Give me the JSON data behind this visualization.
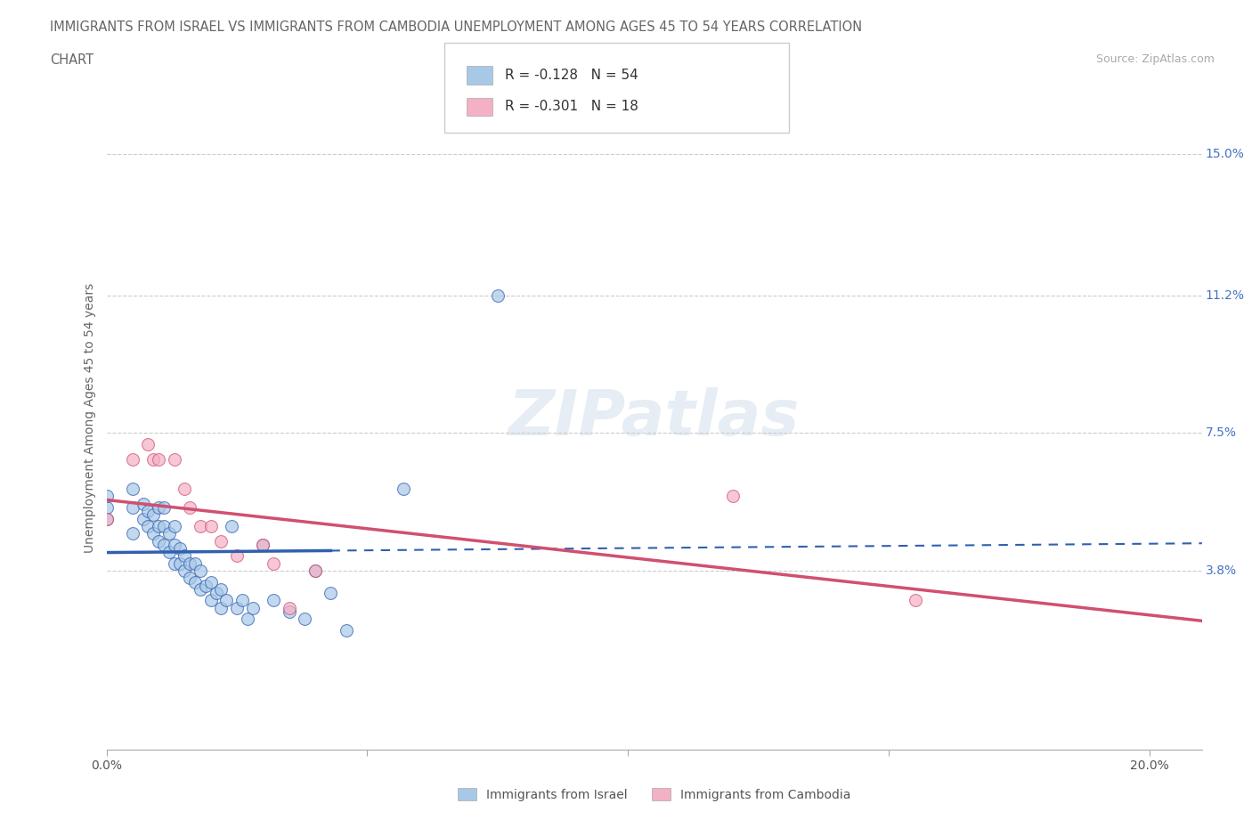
{
  "title_line1": "IMMIGRANTS FROM ISRAEL VS IMMIGRANTS FROM CAMBODIA UNEMPLOYMENT AMONG AGES 45 TO 54 YEARS CORRELATION",
  "title_line2": "CHART",
  "source": "Source: ZipAtlas.com",
  "ylabel": "Unemployment Among Ages 45 to 54 years",
  "xlim": [
    0.0,
    0.21
  ],
  "ylim": [
    -0.01,
    0.168
  ],
  "xtick_positions": [
    0.0,
    0.05,
    0.1,
    0.15,
    0.2
  ],
  "xticklabels": [
    "0.0%",
    "",
    "",
    "",
    "20.0%"
  ],
  "ytick_positions": [
    0.038,
    0.075,
    0.112,
    0.15
  ],
  "ytick_labels": [
    "3.8%",
    "7.5%",
    "11.2%",
    "15.0%"
  ],
  "israel_R": -0.128,
  "israel_N": 54,
  "cambodia_R": -0.301,
  "cambodia_N": 18,
  "israel_color": "#a8c8e8",
  "cambodia_color": "#f4b0c4",
  "israel_line_color": "#3060b0",
  "cambodia_line_color": "#d05070",
  "background_color": "#ffffff",
  "israel_x": [
    0.0,
    0.0,
    0.0,
    0.005,
    0.005,
    0.005,
    0.007,
    0.007,
    0.008,
    0.008,
    0.009,
    0.009,
    0.01,
    0.01,
    0.01,
    0.011,
    0.011,
    0.011,
    0.012,
    0.012,
    0.013,
    0.013,
    0.013,
    0.014,
    0.014,
    0.015,
    0.015,
    0.016,
    0.016,
    0.017,
    0.017,
    0.018,
    0.018,
    0.019,
    0.02,
    0.02,
    0.021,
    0.022,
    0.022,
    0.023,
    0.024,
    0.025,
    0.026,
    0.027,
    0.028,
    0.03,
    0.032,
    0.035,
    0.038,
    0.04,
    0.043,
    0.046,
    0.057,
    0.075
  ],
  "israel_y": [
    0.052,
    0.055,
    0.058,
    0.048,
    0.055,
    0.06,
    0.052,
    0.056,
    0.05,
    0.054,
    0.048,
    0.053,
    0.046,
    0.05,
    0.055,
    0.045,
    0.05,
    0.055,
    0.043,
    0.048,
    0.04,
    0.045,
    0.05,
    0.04,
    0.044,
    0.038,
    0.042,
    0.036,
    0.04,
    0.035,
    0.04,
    0.033,
    0.038,
    0.034,
    0.03,
    0.035,
    0.032,
    0.028,
    0.033,
    0.03,
    0.05,
    0.028,
    0.03,
    0.025,
    0.028,
    0.045,
    0.03,
    0.027,
    0.025,
    0.038,
    0.032,
    0.022,
    0.06,
    0.112
  ],
  "cambodia_x": [
    0.0,
    0.005,
    0.008,
    0.009,
    0.01,
    0.013,
    0.015,
    0.016,
    0.018,
    0.02,
    0.022,
    0.025,
    0.03,
    0.032,
    0.035,
    0.04,
    0.12,
    0.155
  ],
  "cambodia_y": [
    0.052,
    0.068,
    0.072,
    0.068,
    0.068,
    0.068,
    0.06,
    0.055,
    0.05,
    0.05,
    0.046,
    0.042,
    0.045,
    0.04,
    0.028,
    0.038,
    0.058,
    0.03
  ],
  "israel_trend_x0": 0.0,
  "israel_trend_x_solid_end": 0.043,
  "israel_trend_x1": 0.21,
  "cambodia_trend_x0": 0.0,
  "cambodia_trend_x1": 0.21
}
